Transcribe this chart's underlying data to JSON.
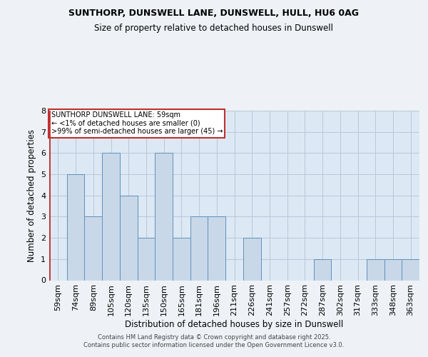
{
  "title1": "SUNTHORP, DUNSWELL LANE, DUNSWELL, HULL, HU6 0AG",
  "title2": "Size of property relative to detached houses in Dunswell",
  "xlabel": "Distribution of detached houses by size in Dunswell",
  "ylabel": "Number of detached properties",
  "categories": [
    "59sqm",
    "74sqm",
    "89sqm",
    "105sqm",
    "120sqm",
    "135sqm",
    "150sqm",
    "165sqm",
    "181sqm",
    "196sqm",
    "211sqm",
    "226sqm",
    "241sqm",
    "257sqm",
    "272sqm",
    "287sqm",
    "302sqm",
    "317sqm",
    "333sqm",
    "348sqm",
    "363sqm"
  ],
  "values": [
    0,
    5,
    3,
    6,
    4,
    2,
    6,
    2,
    3,
    3,
    0,
    2,
    0,
    0,
    0,
    1,
    0,
    0,
    1,
    1,
    1
  ],
  "bar_color": "#c8d8e8",
  "bar_edge_color": "#6090c0",
  "highlight_edge_color": "#c03030",
  "annotation_text": "SUNTHORP DUNSWELL LANE: 59sqm\n← <1% of detached houses are smaller (0)\n>99% of semi-detached houses are larger (45) →",
  "annotation_box_edge_color": "#c03030",
  "ylim": [
    0,
    8
  ],
  "yticks": [
    0,
    1,
    2,
    3,
    4,
    5,
    6,
    7,
    8
  ],
  "footer_text": "Contains HM Land Registry data © Crown copyright and database right 2025.\nContains public sector information licensed under the Open Government Licence v3.0.",
  "bg_color": "#eef2f6",
  "plot_bg_color": "#dce8f4",
  "grid_color": "#b8c8d8"
}
